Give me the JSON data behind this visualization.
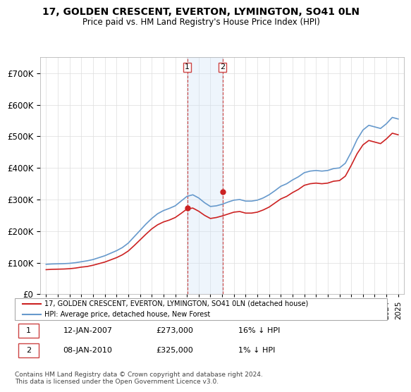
{
  "title": "17, GOLDEN CRESCENT, EVERTON, LYMINGTON, SO41 0LN",
  "subtitle": "Price paid vs. HM Land Registry's House Price Index (HPI)",
  "sale1_date": "12-JAN-2007",
  "sale1_price": 273000,
  "sale1_pct": "16% ↓ HPI",
  "sale2_date": "08-JAN-2010",
  "sale2_price": 325000,
  "sale2_pct": "1% ↓ HPI",
  "legend_line1": "17, GOLDEN CRESCENT, EVERTON, LYMINGTON, SO41 0LN (detached house)",
  "legend_line2": "HPI: Average price, detached house, New Forest",
  "footer": "Contains HM Land Registry data © Crown copyright and database right 2024.\nThis data is licensed under the Open Government Licence v3.0.",
  "sale1_x": 2007.03,
  "sale2_x": 2010.03,
  "hpi_color": "#6699cc",
  "price_color": "#cc2222",
  "highlight_color": "#d0e4f7",
  "ylim_min": 0,
  "ylim_max": 750000,
  "xlim_min": 1994.5,
  "xlim_max": 2025.5
}
